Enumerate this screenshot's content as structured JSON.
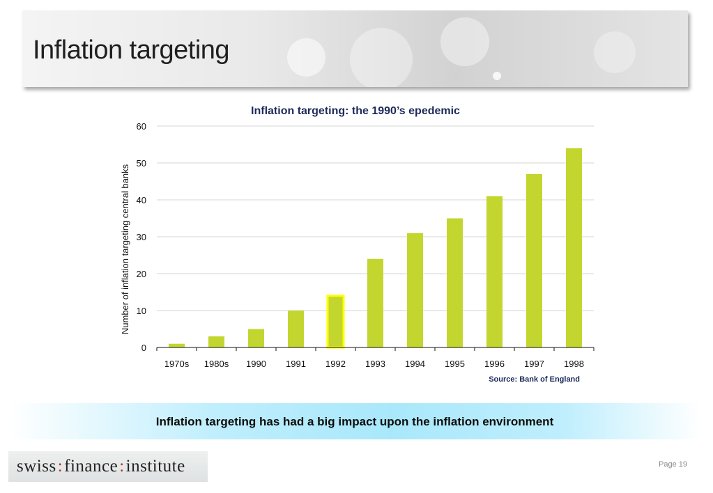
{
  "header": {
    "title": "Inflation targeting"
  },
  "chart_data": {
    "type": "bar",
    "title": "Inflation targeting: the 1990’s epedemic",
    "ylabel": "Number of inflation targeting central banks",
    "xlabel": "",
    "categories": [
      "1970s",
      "1980s",
      "1990",
      "1991",
      "1992",
      "1993",
      "1994",
      "1995",
      "1996",
      "1997",
      "1998"
    ],
    "values": [
      1,
      3,
      5,
      10,
      14,
      24,
      31,
      35,
      41,
      47,
      54
    ],
    "ylim": [
      0,
      60
    ],
    "yticks": [
      "0",
      "10",
      "20",
      "30",
      "40",
      "50",
      "60"
    ],
    "highlight_category": "1992",
    "grid": true,
    "bar_color": "#c3d62f",
    "highlight_color": "#ffff00",
    "source": "Source: Bank of England"
  },
  "callout": {
    "text": "Inflation targeting has had a big impact upon the inflation environment"
  },
  "footer": {
    "logo_parts": [
      "swiss",
      "finance",
      "institute"
    ],
    "logo_separator": ":",
    "page_label": "Page 19"
  }
}
